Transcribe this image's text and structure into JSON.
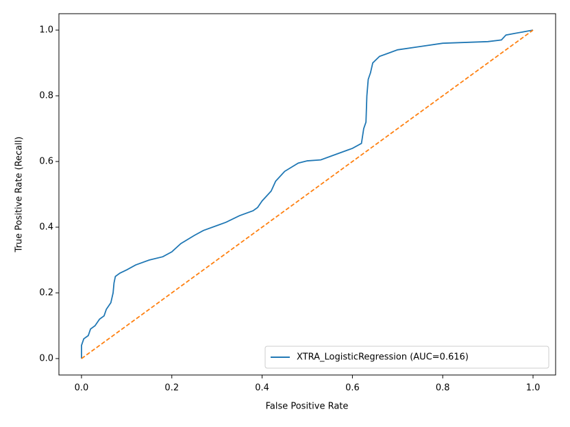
{
  "chart_data": {
    "type": "line",
    "xlabel": "False Positive Rate",
    "ylabel": "True Positive Rate (Recall)",
    "xlim": [
      -0.05,
      1.05
    ],
    "ylim": [
      -0.05,
      1.05
    ],
    "xticks": [
      {
        "value": 0,
        "label": "0.0"
      },
      0.2,
      0.4,
      0.6,
      0.8,
      {
        "value": 1,
        "label": "1.0"
      }
    ],
    "yticks": [
      {
        "value": 0,
        "label": "0.0"
      },
      0.2,
      0.4,
      0.6,
      0.8,
      {
        "value": 1,
        "label": "1.0"
      }
    ],
    "legend": "lower right",
    "series": [
      {
        "name": "XTRA_LogisticRegression (AUC=0.616)",
        "color": "#1f77b4",
        "style": "solid",
        "x": [
          0,
          0,
          0.005,
          0.015,
          0.02,
          0.03,
          0.04,
          0.05,
          0.055,
          0.065,
          0.07,
          0.072,
          0.075,
          0.085,
          0.1,
          0.12,
          0.15,
          0.18,
          0.2,
          0.22,
          0.25,
          0.27,
          0.3,
          0.32,
          0.35,
          0.38,
          0.39,
          0.4,
          0.42,
          0.43,
          0.45,
          0.48,
          0.5,
          0.53,
          0.56,
          0.6,
          0.62,
          0.625,
          0.63,
          0.632,
          0.635,
          0.64,
          0.645,
          0.66,
          0.68,
          0.7,
          0.75,
          0.8,
          0.9,
          0.93,
          0.94,
          0.96,
          0.98,
          1
        ],
        "values": [
          0,
          0.04,
          0.06,
          0.07,
          0.09,
          0.1,
          0.12,
          0.13,
          0.15,
          0.17,
          0.2,
          0.23,
          0.25,
          0.26,
          0.27,
          0.285,
          0.3,
          0.31,
          0.325,
          0.35,
          0.375,
          0.39,
          0.405,
          0.415,
          0.435,
          0.45,
          0.46,
          0.48,
          0.51,
          0.54,
          0.57,
          0.595,
          0.602,
          0.605,
          0.62,
          0.64,
          0.655,
          0.7,
          0.72,
          0.8,
          0.85,
          0.87,
          0.9,
          0.92,
          0.93,
          0.94,
          0.95,
          0.96,
          0.965,
          0.97,
          0.985,
          0.99,
          0.995,
          1
        ]
      },
      {
        "color": "#ff7f0e",
        "style": "dashed",
        "x": [
          0,
          1
        ],
        "values": [
          0,
          1
        ]
      }
    ]
  }
}
